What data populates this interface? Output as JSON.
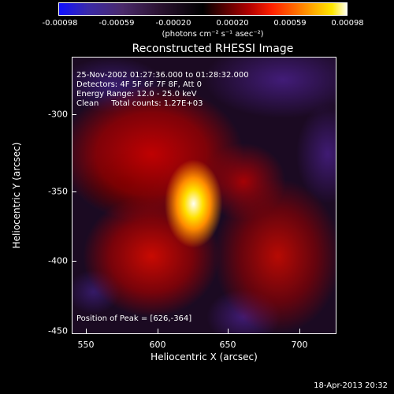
{
  "colorbar": {
    "ticks": [
      "-0.00098",
      "-0.00059",
      "-0.00020",
      "0.00020",
      "0.00059",
      "0.00098"
    ],
    "unit": "(photons cm⁻² s⁻¹ asec⁻²)"
  },
  "title": "Reconstructed RHESSI Image",
  "info": {
    "line1": "25-Nov-2002 01:27:36.000 to 01:28:32.000",
    "line2": "Detectors: 4F 5F 6F 7F 8F, Att 0",
    "line3": "Energy Range: 12.0 - 25.0 keV",
    "line4": "Clean     Total counts: 1.27E+03"
  },
  "peak": "Position of Peak = [626,-364]",
  "axes": {
    "ylabel": "Heliocentric Y (arcsec)",
    "xlabel": "Heliocentric X (arcsec)",
    "yticks": [
      "-300",
      "-350",
      "-400",
      "-450"
    ],
    "xticks": [
      "550",
      "600",
      "650",
      "700"
    ]
  },
  "timestamp": "18-Apr-2013 20:32"
}
